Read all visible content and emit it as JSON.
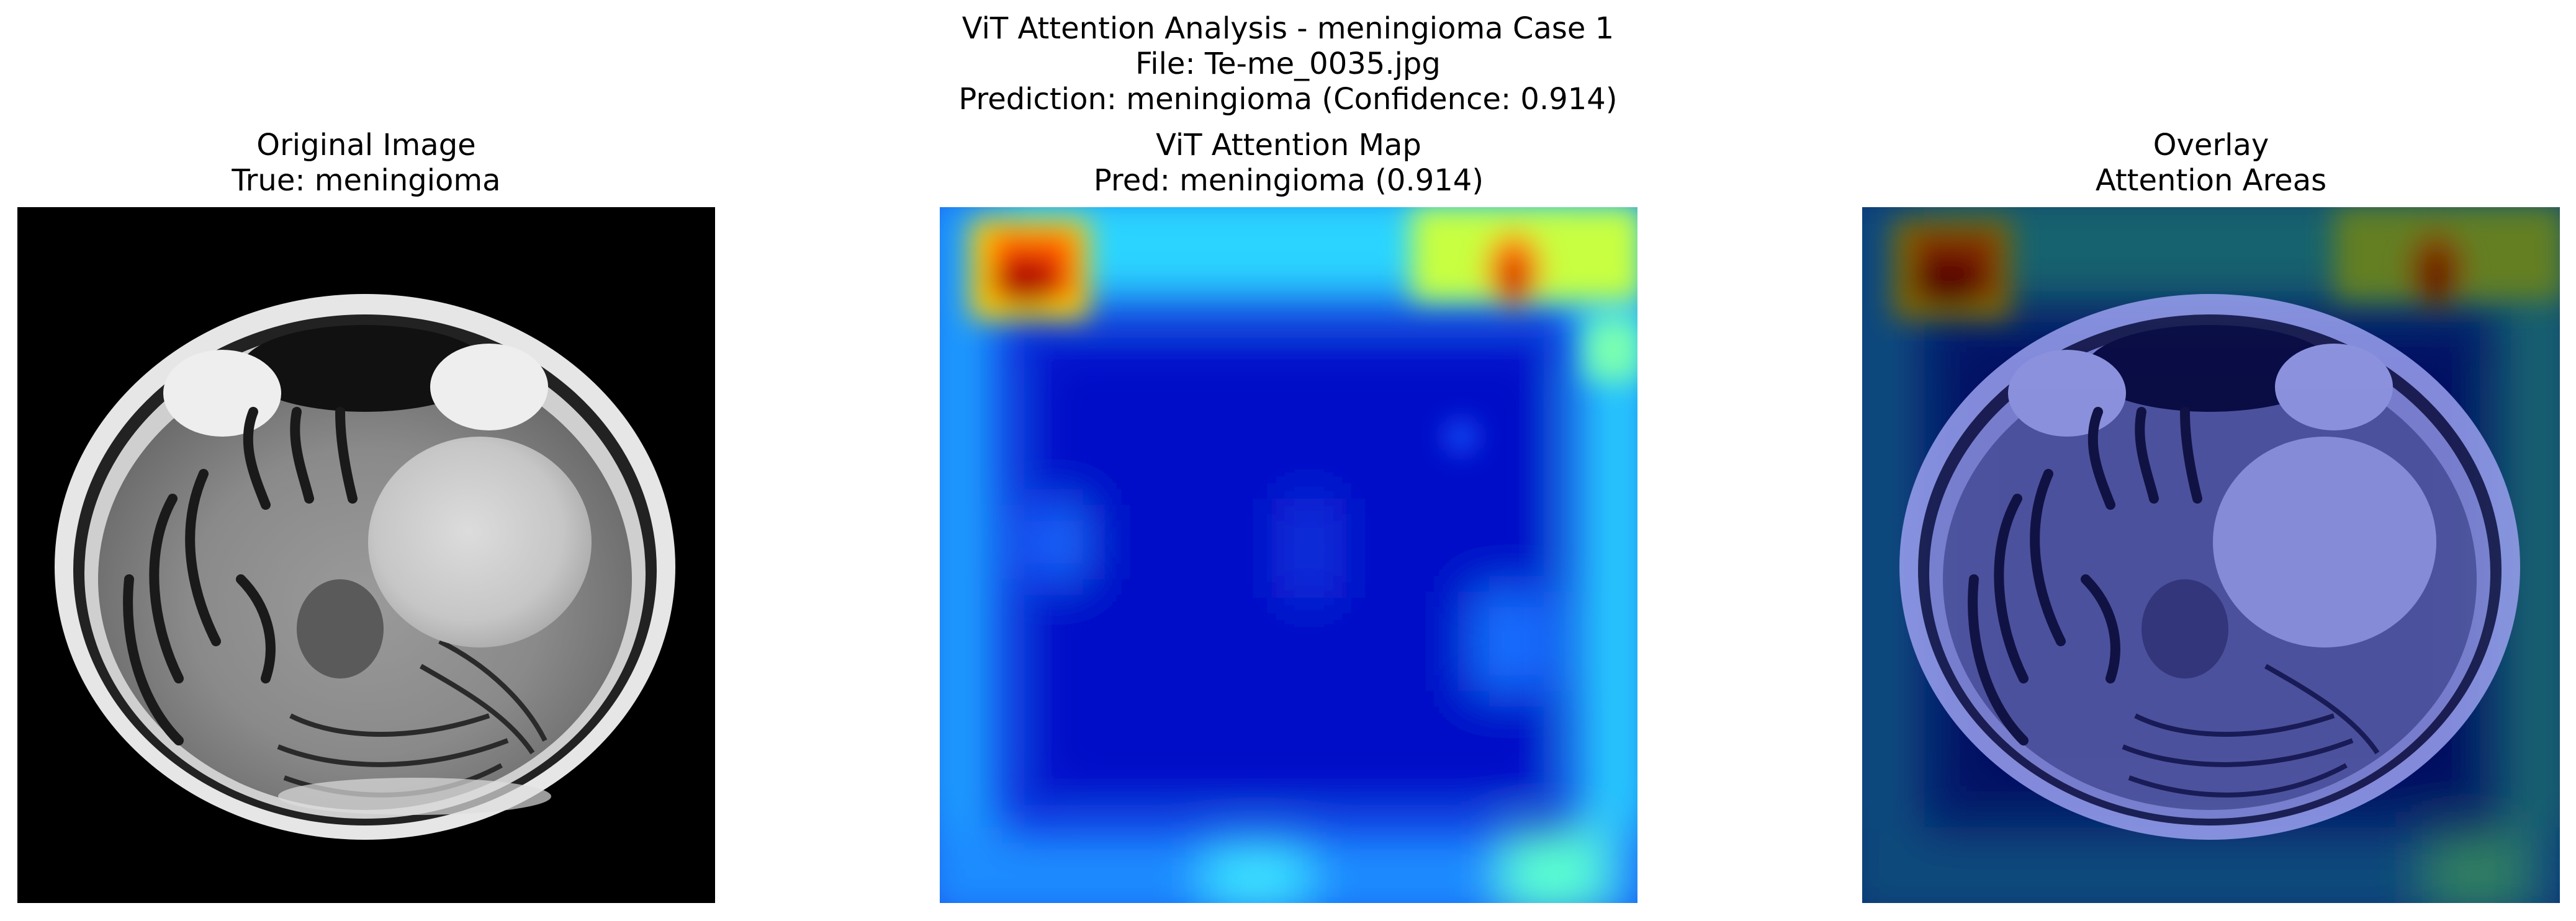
{
  "figure": {
    "suptitle_lines": [
      "ViT Attention Analysis - meningioma Case 1",
      "File: Te-me_0035.jpg",
      "Prediction: meningioma (Confidence: 0.914)"
    ]
  },
  "panels": [
    {
      "title_lines": [
        "Original Image",
        "True: meningioma"
      ],
      "content": "grayscale axial brain MRI slice"
    },
    {
      "title_lines": [
        "ViT Attention Map",
        "Pred: meningioma (0.914)"
      ],
      "content": "jet colormap attention heatmap"
    },
    {
      "title_lines": [
        "Overlay",
        "Attention Areas"
      ],
      "content": "MRI slice with attention heatmap overlay"
    }
  ],
  "colors": {
    "background": "#ffffff",
    "mri_background": "#000000",
    "heat_low": "#0a14d8",
    "heat_mid": "#1fc8ff",
    "heat_high": "#d40000"
  }
}
